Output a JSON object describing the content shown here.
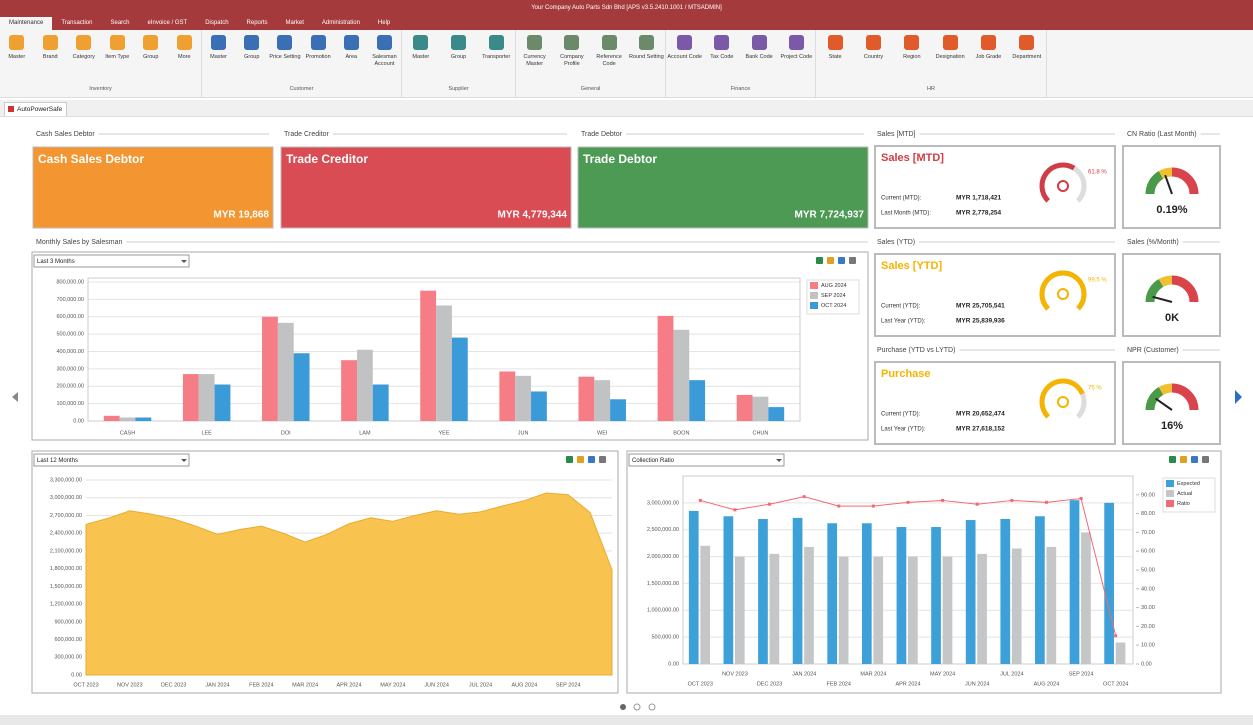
{
  "window_title": "Your Company Auto Parts Sdn Bhd [APS v3.5.2410.1001 / MTSADMIN]",
  "menu_tabs": [
    "Maintenance",
    "Transaction",
    "Search",
    "eInvoice / GST",
    "Dispatch",
    "Reports",
    "Market",
    "Administration",
    "Help"
  ],
  "ribbon": [
    {
      "group": "Inventory",
      "items": [
        "Master",
        "Brand",
        "Category",
        "Item Type",
        "Group",
        "More"
      ]
    },
    {
      "group": "Customer",
      "items": [
        "Master",
        "Group",
        "Price Setting",
        "Promotion",
        "Area",
        "Salesman Account"
      ]
    },
    {
      "group": "Supplier",
      "items": [
        "Master",
        "Group",
        "Transporter"
      ]
    },
    {
      "group": "General",
      "items": [
        "Currency Master",
        "Company Profile",
        "Reference Code",
        "Round Setting"
      ]
    },
    {
      "group": "Finance",
      "items": [
        "Account Code",
        "Tax Code",
        "Bank Code",
        "Project Code"
      ]
    },
    {
      "group": "HR",
      "items": [
        "State",
        "Country",
        "Region",
        "Designation",
        "Job Grade",
        "Department"
      ]
    }
  ],
  "document_tab": "AutoPowerSafe",
  "cards": [
    {
      "section": "Cash Sales Debtor",
      "title": "Cash Sales Debtor",
      "value": "MYR 19,868",
      "color": "#f39530"
    },
    {
      "section": "Trade Creditor",
      "title": "Trade Creditor",
      "value": "MYR 4,779,344",
      "color": "#d94c53"
    },
    {
      "section": "Trade Debtor",
      "title": "Trade Debtor",
      "value": "MYR 7,724,937",
      "color": "#4c9a54"
    }
  ],
  "kpis": [
    {
      "section": "Sales [MTD]",
      "title": "Sales [MTD]",
      "color": "#d23c44",
      "percent": 61.8,
      "percent_label": "61.8 %",
      "rows": [
        [
          "Current (MTD):",
          "MYR 1,718,421"
        ],
        [
          "Last Month (MTD):",
          "MYR 2,778,254"
        ]
      ]
    },
    {
      "section": "Sales (YTD)",
      "title": "Sales [YTD]",
      "color": "#f4b400",
      "percent": 99.5,
      "percent_label": "99.5 %",
      "rows": [
        [
          "Current (YTD):",
          "MYR 25,705,541"
        ],
        [
          "Last Year (YTD):",
          "MYR 25,839,936"
        ]
      ]
    },
    {
      "section": "Purchase (YTD vs LYTD)",
      "title": "Purchase",
      "color": "#f4b400",
      "percent": 75,
      "percent_label": "75 %",
      "rows": [
        [
          "Current (YTD):",
          "MYR 20,652,474"
        ],
        [
          "Last Year (YTD):",
          "MYR 27,618,152"
        ]
      ]
    }
  ],
  "gauges": [
    {
      "section": "CN Ratio (Last Month)",
      "value_label": "0.19%"
    },
    {
      "section": "Sales (%/Month)",
      "value_label": "0K"
    },
    {
      "section": "NPR (Customer)",
      "value_label": "16%"
    }
  ],
  "chart_data": [
    {
      "type": "bar",
      "section": "Monthly Sales by Salesman",
      "title": "Last 3 Months",
      "categories": [
        "CASH",
        "LEE",
        "DOI",
        "LAM",
        "YEE",
        "JUN",
        "WEI",
        "BOON",
        "CHUN"
      ],
      "series": [
        {
          "name": "AUG 2024",
          "color": "#f67c86",
          "values": [
            30000,
            270000,
            600000,
            350000,
            750000,
            285000,
            255000,
            605000,
            150000
          ]
        },
        {
          "name": "SEP 2024",
          "color": "#c0c2c4",
          "values": [
            20000,
            270000,
            565000,
            410000,
            665000,
            260000,
            235000,
            525000,
            140000
          ]
        },
        {
          "name": "OCT 2024",
          "color": "#3b9ad8",
          "values": [
            20000,
            210000,
            390000,
            210000,
            480000,
            170000,
            125000,
            235000,
            80000
          ]
        }
      ],
      "ylim": [
        0,
        800000
      ],
      "yticks": [
        {
          "value": 0,
          "label": "0.00"
        },
        {
          "value": 100000,
          "label": "100,000.00"
        },
        {
          "value": 200000,
          "label": "200,000.00"
        },
        {
          "value": 300000,
          "label": "300,000.00"
        },
        {
          "value": 400000,
          "label": "400,000.00"
        },
        {
          "value": 500000,
          "label": "500,000.00"
        },
        {
          "value": 600000,
          "label": "600,000.00"
        },
        {
          "value": 700000,
          "label": "700,000.00"
        },
        {
          "value": 800000,
          "label": "800,000.00"
        }
      ],
      "grid": true,
      "legend": "top-right"
    },
    {
      "type": "area",
      "title": "Last 12 Months",
      "categories": [
        "OCT 2023",
        null,
        "NOV 2023",
        null,
        "DEC 2023",
        null,
        "JAN 2024",
        null,
        "FEB 2024",
        null,
        "MAR 2024",
        null,
        "APR 2024",
        null,
        "MAY 2024",
        null,
        "JUN 2024",
        null,
        "JUL 2024",
        null,
        "AUG 2024",
        null,
        "SEP 2024",
        null,
        null
      ],
      "values": [
        2550000,
        2650000,
        2780000,
        2720000,
        2640000,
        2520000,
        2380000,
        2460000,
        2520000,
        2400000,
        2250000,
        2380000,
        2560000,
        2660000,
        2600000,
        2700000,
        2780000,
        2720000,
        2760000,
        2860000,
        2950000,
        3080000,
        3050000,
        2750000,
        1780000
      ],
      "color": "#f8c44f",
      "ylim": [
        0,
        3300000
      ],
      "yticks": [
        {
          "value": 0,
          "label": "0.00"
        },
        {
          "value": 300000,
          "label": "300,000.00"
        },
        {
          "value": 600000,
          "label": "600,000.00"
        },
        {
          "value": 900000,
          "label": "900,000.00"
        },
        {
          "value": 1200000,
          "label": "1,200,000.00"
        },
        {
          "value": 1500000,
          "label": "1,500,000.00"
        },
        {
          "value": 1800000,
          "label": "1,800,000.00"
        },
        {
          "value": 2100000,
          "label": "2,100,000.00"
        },
        {
          "value": 2400000,
          "label": "2,400,000.00"
        },
        {
          "value": 2700000,
          "label": "2,700,000.00"
        },
        {
          "value": 3000000,
          "label": "3,000,000.00"
        },
        {
          "value": 3300000,
          "label": "3,300,000.00"
        }
      ],
      "grid": true
    },
    {
      "type": "combo",
      "title": "Collection Ratio",
      "categories": [
        "OCT 2023",
        "NOV 2023",
        "DEC 2023",
        "JAN 2024",
        "FEB 2024",
        "MAR 2024",
        "APR 2024",
        "MAY 2024",
        "JUN 2024",
        "JUL 2024",
        "AUG 2024",
        "SEP 2024",
        "OCT 2024"
      ],
      "series": [
        {
          "name": "Expected",
          "color": "#3ea0d9",
          "type": "bar",
          "values": [
            2850000,
            2750000,
            2700000,
            2720000,
            2620000,
            2620000,
            2550000,
            2550000,
            2680000,
            2700000,
            2750000,
            3050000,
            3000000
          ]
        },
        {
          "name": "Actual",
          "color": "#c4c6c8",
          "type": "bar",
          "values": [
            2200000,
            2000000,
            2050000,
            2180000,
            2000000,
            2000000,
            2000000,
            2000000,
            2050000,
            2150000,
            2180000,
            2450000,
            400000
          ]
        },
        {
          "name": "Ratio",
          "color": "#f16a74",
          "type": "line",
          "axis": "y2",
          "values": [
            87,
            82,
            85,
            89,
            84,
            84,
            86,
            87,
            85,
            87,
            86,
            88,
            15
          ]
        }
      ],
      "ylim": [
        0,
        3500000
      ],
      "yticks": [
        {
          "value": 0,
          "label": "0.00"
        },
        {
          "value": 500000,
          "label": "500,000.00"
        },
        {
          "value": 1000000,
          "label": "1,000,000.00"
        },
        {
          "value": 1500000,
          "label": "1,500,000.00"
        },
        {
          "value": 2000000,
          "label": "2,000,000.00"
        },
        {
          "value": 2500000,
          "label": "2,500,000.00"
        },
        {
          "value": 3000000,
          "label": "3,000,000.00"
        }
      ],
      "y2lim": [
        0,
        100
      ],
      "y2ticks": [
        {
          "value": 0,
          "label": "0.00"
        },
        {
          "value": 10,
          "label": "10.00"
        },
        {
          "value": 20,
          "label": "20.00"
        },
        {
          "value": 30,
          "label": "30.00"
        },
        {
          "value": 40,
          "label": "40.00"
        },
        {
          "value": 50,
          "label": "50.00"
        },
        {
          "value": 60,
          "label": "60.00"
        },
        {
          "value": 70,
          "label": "70.00"
        },
        {
          "value": 80,
          "label": "80.00"
        },
        {
          "value": 90,
          "label": "90.00"
        }
      ],
      "grid": true,
      "legend": "top-right"
    }
  ]
}
